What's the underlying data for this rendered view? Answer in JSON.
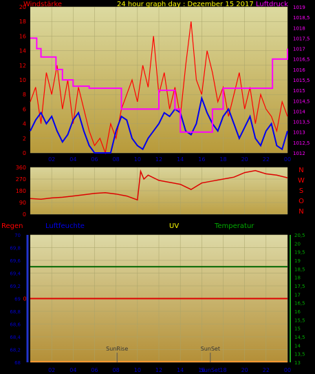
{
  "colors": {
    "wind": "#ff0000",
    "gust_avg": "#0000ee",
    "pressure": "#ff00ff",
    "direction": "#dd0000",
    "humidity_line": "#006600",
    "rain_line": "#dd0000",
    "title": "#ffff00",
    "panel_top": "#dcdaa0",
    "panel_bottom": "#b89a3a"
  },
  "chart_data": [
    {
      "type": "line",
      "title": "24 hour graph day : Dezember 15 2017",
      "label_left": "Windstärke",
      "label_right": "Luftdruck",
      "x_ticks": [
        "02",
        "04",
        "06",
        "08",
        "10",
        "12",
        "14",
        "16",
        "18",
        "20",
        "22",
        "00"
      ],
      "y_left": {
        "min": 0,
        "max": 20,
        "ticks": [
          "0",
          "2",
          "4",
          "6",
          "8",
          "10",
          "12",
          "14",
          "16",
          "18",
          "20"
        ]
      },
      "y_right": {
        "min": 1012,
        "max": 1019,
        "ticks": [
          "1012",
          "1012,5",
          "1013",
          "1013,5",
          "1014",
          "1014,5",
          "1015",
          "1015,5",
          "1016",
          "1016,5",
          "1017",
          "1017,5",
          "1018",
          "1018,5",
          "1019"
        ]
      },
      "series": [
        {
          "values_x": [
            0,
            0.5,
            1,
            1.5,
            2,
            2.5,
            3,
            3.5,
            4,
            4.5,
            5,
            5.5,
            6,
            6.5,
            7,
            7.5,
            8,
            8.5,
            9,
            9.5,
            10,
            10.5,
            11,
            11.5,
            12,
            12.5,
            13,
            13.5,
            14,
            14.5,
            15,
            15.5,
            16,
            16.5,
            17,
            17.5,
            18,
            18.5,
            19,
            19.5,
            20,
            20.5,
            21,
            21.5,
            22,
            22.5,
            23,
            23.5,
            24
          ],
          "values": [
            7,
            9,
            4,
            11,
            8,
            12,
            6,
            10,
            4,
            9,
            6,
            3,
            1,
            2,
            0,
            4,
            2,
            6,
            8,
            10,
            7,
            12,
            9,
            16,
            8,
            11,
            6,
            9,
            5,
            12,
            18,
            10,
            8,
            14,
            11,
            7,
            9,
            5,
            8,
            11,
            6,
            9,
            4,
            8,
            6,
            5,
            3,
            7,
            5
          ]
        },
        {
          "values_x": [
            0,
            0.5,
            1,
            1.5,
            2,
            2.5,
            3,
            3.5,
            4,
            4.5,
            5,
            5.5,
            6,
            6.5,
            7,
            7.5,
            8,
            8.5,
            9,
            9.5,
            10,
            10.5,
            11,
            11.5,
            12,
            12.5,
            13,
            13.5,
            14,
            14.5,
            15,
            15.5,
            16,
            16.5,
            17,
            17.5,
            18,
            18.5,
            19,
            19.5,
            20,
            20.5,
            21,
            21.5,
            22,
            22.5,
            23,
            23.5,
            24
          ],
          "values": [
            3,
            4.5,
            5.5,
            4,
            5,
            3,
            1.5,
            2.5,
            4.5,
            5.5,
            3,
            1,
            0,
            0,
            0,
            0,
            3,
            5,
            4.5,
            2,
            1,
            0.5,
            2,
            3,
            4,
            5.5,
            5,
            6,
            5.5,
            3,
            2.5,
            4,
            7.5,
            5.5,
            4,
            3,
            5,
            6,
            4,
            2,
            3.5,
            5,
            2,
            1,
            3,
            4,
            1,
            0.5,
            3
          ]
        },
        {
          "values_x": [
            0,
            0.3,
            0.6,
            1,
            1.6,
            2.4,
            3,
            4,
            5.5,
            7,
            8.5,
            10.5,
            11,
            12,
            13,
            13.5,
            14,
            16,
            17,
            18,
            19,
            20,
            21,
            22,
            22.6,
            23,
            23.5,
            24
          ],
          "values": [
            1017.5,
            1017.5,
            1017,
            1016.6,
            1016.6,
            1016,
            1015.5,
            1015.2,
            1015.1,
            1015.1,
            1014.1,
            1014.1,
            1014.1,
            1015,
            1015,
            1014.1,
            1013,
            1013,
            1014.1,
            1015.1,
            1015.1,
            1015.1,
            1015.1,
            1015.1,
            1016.5,
            1016.5,
            1016.5,
            1017
          ]
        }
      ]
    },
    {
      "type": "line",
      "x_ticks": [
        "02",
        "04",
        "06",
        "08",
        "10",
        "12",
        "14",
        "16",
        "18",
        "20",
        "22",
        "00"
      ],
      "y": {
        "min": 0,
        "max": 360,
        "ticks": [
          "0",
          "90",
          "180",
          "270",
          "360"
        ]
      },
      "compass": [
        "N",
        "W",
        "S",
        "O",
        "N"
      ],
      "series": [
        {
          "values_x": [
            0,
            1,
            2,
            3,
            4,
            5,
            6,
            7,
            8,
            9,
            10,
            10.3,
            10.6,
            11,
            12,
            13,
            14,
            15,
            16,
            17,
            18,
            19,
            20,
            21,
            22,
            23,
            24
          ],
          "values": [
            120,
            115,
            125,
            130,
            140,
            150,
            160,
            165,
            155,
            140,
            110,
            330,
            270,
            300,
            260,
            245,
            230,
            190,
            240,
            255,
            270,
            285,
            320,
            335,
            310,
            300,
            280
          ]
        }
      ]
    },
    {
      "type": "line",
      "labels_top": [
        "Regen",
        "Luftfeuchte",
        "UV",
        "Temperatur"
      ],
      "x_ticks": [
        "02",
        "04",
        "06",
        "08",
        "10",
        "12",
        "14",
        "16",
        "18",
        "20",
        "22",
        "00"
      ],
      "y_left": {
        "min": 68,
        "max": 70,
        "ticks": [
          "68",
          "68,2",
          "68,4",
          "68,6",
          "68,8",
          "69",
          "69,2",
          "69,4",
          "69,6",
          "69,8",
          "70"
        ]
      },
      "y_right": {
        "min": 13,
        "max": 20.5,
        "ticks": [
          "13",
          "13,5",
          "14",
          "14,5",
          "15",
          "15,5",
          "16",
          "16,5",
          "17",
          "17,5",
          "18",
          "18,5",
          "19",
          "19,5",
          "20",
          "20,5"
        ]
      },
      "rain_zero_label": "0",
      "humidity_value": 69.5,
      "rain_line_value": 69,
      "sunrise": {
        "label": "SunRise",
        "x": 8.1
      },
      "sunset": {
        "label": "SunSet",
        "x": 16.8
      },
      "sun_label_bottom": "SunSet"
    }
  ]
}
